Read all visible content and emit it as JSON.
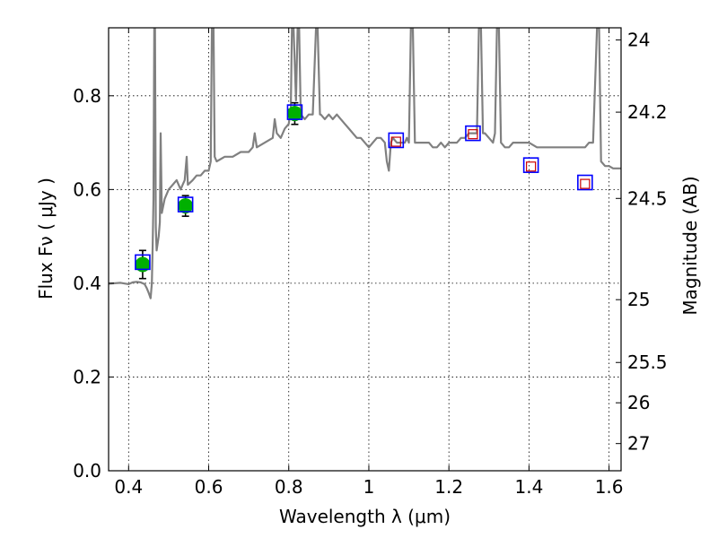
{
  "chart_data": {
    "type": "scatter",
    "xlabel": "Wavelength  λ (μm)",
    "ylabel": "Flux  Fν  ( μJy )",
    "y2label": "Magnitude (AB)",
    "xlim": [
      0.35,
      1.63
    ],
    "ylim": [
      0.0,
      0.945
    ],
    "x_ticks": [
      0.4,
      0.6,
      0.8,
      1.0,
      1.2,
      1.4,
      1.6
    ],
    "x_tick_labels": [
      "0.4",
      "0.6",
      "0.8",
      "1",
      "1.2",
      "1.4",
      "1.6"
    ],
    "y_ticks": [
      0.0,
      0.2,
      0.4,
      0.6,
      0.8
    ],
    "y_tick_labels": [
      "0.0",
      "0.2",
      "0.4",
      "0.6",
      "0.8"
    ],
    "y2_ticks": [
      {
        "label": "24",
        "flux": 0.919
      },
      {
        "label": "24.2",
        "flux": 0.765
      },
      {
        "label": "24.5",
        "flux": 0.581
      },
      {
        "label": "25",
        "flux": 0.365
      },
      {
        "label": "25.5",
        "flux": 0.231
      },
      {
        "label": "26",
        "flux": 0.145
      },
      {
        "label": "27",
        "flux": 0.058
      }
    ],
    "grid": true,
    "colors": {
      "template": "#808080",
      "model_box": "#0000ff",
      "photometry": "#00b000",
      "errorbar": "#000000",
      "upper_box": "#cc0000"
    },
    "template_spectrum": {
      "name": "",
      "points": [
        [
          0.35,
          0.399
        ],
        [
          0.38,
          0.401
        ],
        [
          0.4,
          0.398
        ],
        [
          0.41,
          0.402
        ],
        [
          0.42,
          0.403
        ],
        [
          0.43,
          0.402
        ],
        [
          0.44,
          0.398
        ],
        [
          0.445,
          0.39
        ],
        [
          0.45,
          0.38
        ],
        [
          0.455,
          0.368
        ],
        [
          0.458,
          0.4
        ],
        [
          0.46,
          0.48
        ],
        [
          0.462,
          0.58
        ],
        [
          0.464,
          0.945
        ],
        [
          0.466,
          0.945
        ],
        [
          0.468,
          0.52
        ],
        [
          0.47,
          0.47
        ],
        [
          0.475,
          0.5
        ],
        [
          0.478,
          0.53
        ],
        [
          0.48,
          0.72
        ],
        [
          0.483,
          0.55
        ],
        [
          0.49,
          0.58
        ],
        [
          0.5,
          0.6
        ],
        [
          0.51,
          0.61
        ],
        [
          0.52,
          0.62
        ],
        [
          0.53,
          0.6
        ],
        [
          0.535,
          0.61
        ],
        [
          0.54,
          0.62
        ],
        [
          0.545,
          0.67
        ],
        [
          0.548,
          0.61
        ],
        [
          0.56,
          0.62
        ],
        [
          0.57,
          0.63
        ],
        [
          0.58,
          0.63
        ],
        [
          0.59,
          0.64
        ],
        [
          0.6,
          0.64
        ],
        [
          0.605,
          0.66
        ],
        [
          0.608,
          0.945
        ],
        [
          0.612,
          0.945
        ],
        [
          0.615,
          0.67
        ],
        [
          0.62,
          0.66
        ],
        [
          0.64,
          0.67
        ],
        [
          0.66,
          0.67
        ],
        [
          0.68,
          0.68
        ],
        [
          0.7,
          0.68
        ],
        [
          0.71,
          0.69
        ],
        [
          0.715,
          0.72
        ],
        [
          0.72,
          0.69
        ],
        [
          0.74,
          0.7
        ],
        [
          0.76,
          0.71
        ],
        [
          0.765,
          0.75
        ],
        [
          0.77,
          0.72
        ],
        [
          0.78,
          0.71
        ],
        [
          0.79,
          0.73
        ],
        [
          0.8,
          0.74
        ],
        [
          0.805,
          0.77
        ],
        [
          0.808,
          0.945
        ],
        [
          0.812,
          0.945
        ],
        [
          0.818,
          0.79
        ],
        [
          0.822,
          0.945
        ],
        [
          0.826,
          0.945
        ],
        [
          0.83,
          0.76
        ],
        [
          0.84,
          0.75
        ],
        [
          0.85,
          0.76
        ],
        [
          0.86,
          0.76
        ],
        [
          0.868,
          0.945
        ],
        [
          0.872,
          0.945
        ],
        [
          0.878,
          0.76
        ],
        [
          0.88,
          0.76
        ],
        [
          0.89,
          0.75
        ],
        [
          0.9,
          0.76
        ],
        [
          0.91,
          0.75
        ],
        [
          0.92,
          0.76
        ],
        [
          0.93,
          0.75
        ],
        [
          0.94,
          0.74
        ],
        [
          0.95,
          0.73
        ],
        [
          0.96,
          0.72
        ],
        [
          0.97,
          0.71
        ],
        [
          0.98,
          0.71
        ],
        [
          0.99,
          0.7
        ],
        [
          1.0,
          0.69
        ],
        [
          1.01,
          0.7
        ],
        [
          1.02,
          0.71
        ],
        [
          1.03,
          0.71
        ],
        [
          1.04,
          0.7
        ],
        [
          1.045,
          0.66
        ],
        [
          1.05,
          0.64
        ],
        [
          1.055,
          0.7
        ],
        [
          1.06,
          0.71
        ],
        [
          1.07,
          0.7
        ],
        [
          1.08,
          0.7
        ],
        [
          1.09,
          0.7
        ],
        [
          1.095,
          0.71
        ],
        [
          1.1,
          0.7
        ],
        [
          1.105,
          0.945
        ],
        [
          1.11,
          0.945
        ],
        [
          1.115,
          0.7
        ],
        [
          1.13,
          0.7
        ],
        [
          1.15,
          0.7
        ],
        [
          1.16,
          0.69
        ],
        [
          1.17,
          0.69
        ],
        [
          1.18,
          0.7
        ],
        [
          1.19,
          0.69
        ],
        [
          1.2,
          0.7
        ],
        [
          1.21,
          0.7
        ],
        [
          1.22,
          0.7
        ],
        [
          1.23,
          0.71
        ],
        [
          1.24,
          0.71
        ],
        [
          1.25,
          0.72
        ],
        [
          1.26,
          0.72
        ],
        [
          1.27,
          0.72
        ],
        [
          1.275,
          0.945
        ],
        [
          1.28,
          0.945
        ],
        [
          1.285,
          0.72
        ],
        [
          1.29,
          0.72
        ],
        [
          1.3,
          0.71
        ],
        [
          1.31,
          0.7
        ],
        [
          1.315,
          0.72
        ],
        [
          1.32,
          0.945
        ],
        [
          1.325,
          0.945
        ],
        [
          1.33,
          0.7
        ],
        [
          1.34,
          0.69
        ],
        [
          1.35,
          0.69
        ],
        [
          1.36,
          0.7
        ],
        [
          1.37,
          0.7
        ],
        [
          1.38,
          0.7
        ],
        [
          1.4,
          0.7
        ],
        [
          1.42,
          0.69
        ],
        [
          1.44,
          0.69
        ],
        [
          1.46,
          0.69
        ],
        [
          1.48,
          0.69
        ],
        [
          1.5,
          0.69
        ],
        [
          1.52,
          0.69
        ],
        [
          1.54,
          0.69
        ],
        [
          1.55,
          0.7
        ],
        [
          1.56,
          0.7
        ],
        [
          1.57,
          0.945
        ],
        [
          1.575,
          0.945
        ],
        [
          1.58,
          0.66
        ],
        [
          1.59,
          0.65
        ],
        [
          1.6,
          0.65
        ],
        [
          1.61,
          0.645
        ],
        [
          1.63,
          0.645
        ]
      ]
    },
    "series": [
      {
        "name": "",
        "marker": "circle",
        "points": [
          {
            "x": 0.435,
            "y": 0.44,
            "yerr": 0.03
          },
          {
            "x": 0.542,
            "y": 0.565,
            "yerr": 0.022
          },
          {
            "x": 0.815,
            "y": 0.762,
            "yerr": 0.023
          }
        ]
      },
      {
        "name": "",
        "marker": "open-square",
        "points": [
          {
            "x": 0.435,
            "y": 0.445
          },
          {
            "x": 0.542,
            "y": 0.568
          },
          {
            "x": 0.815,
            "y": 0.765
          },
          {
            "x": 1.068,
            "y": 0.705
          },
          {
            "x": 1.26,
            "y": 0.72
          },
          {
            "x": 1.405,
            "y": 0.652
          },
          {
            "x": 1.54,
            "y": 0.615
          }
        ]
      },
      {
        "name": "",
        "marker": "small-square",
        "points": [
          {
            "x": 1.068,
            "y": 0.702
          },
          {
            "x": 1.26,
            "y": 0.718
          },
          {
            "x": 1.405,
            "y": 0.649
          },
          {
            "x": 1.54,
            "y": 0.612
          }
        ]
      }
    ]
  }
}
